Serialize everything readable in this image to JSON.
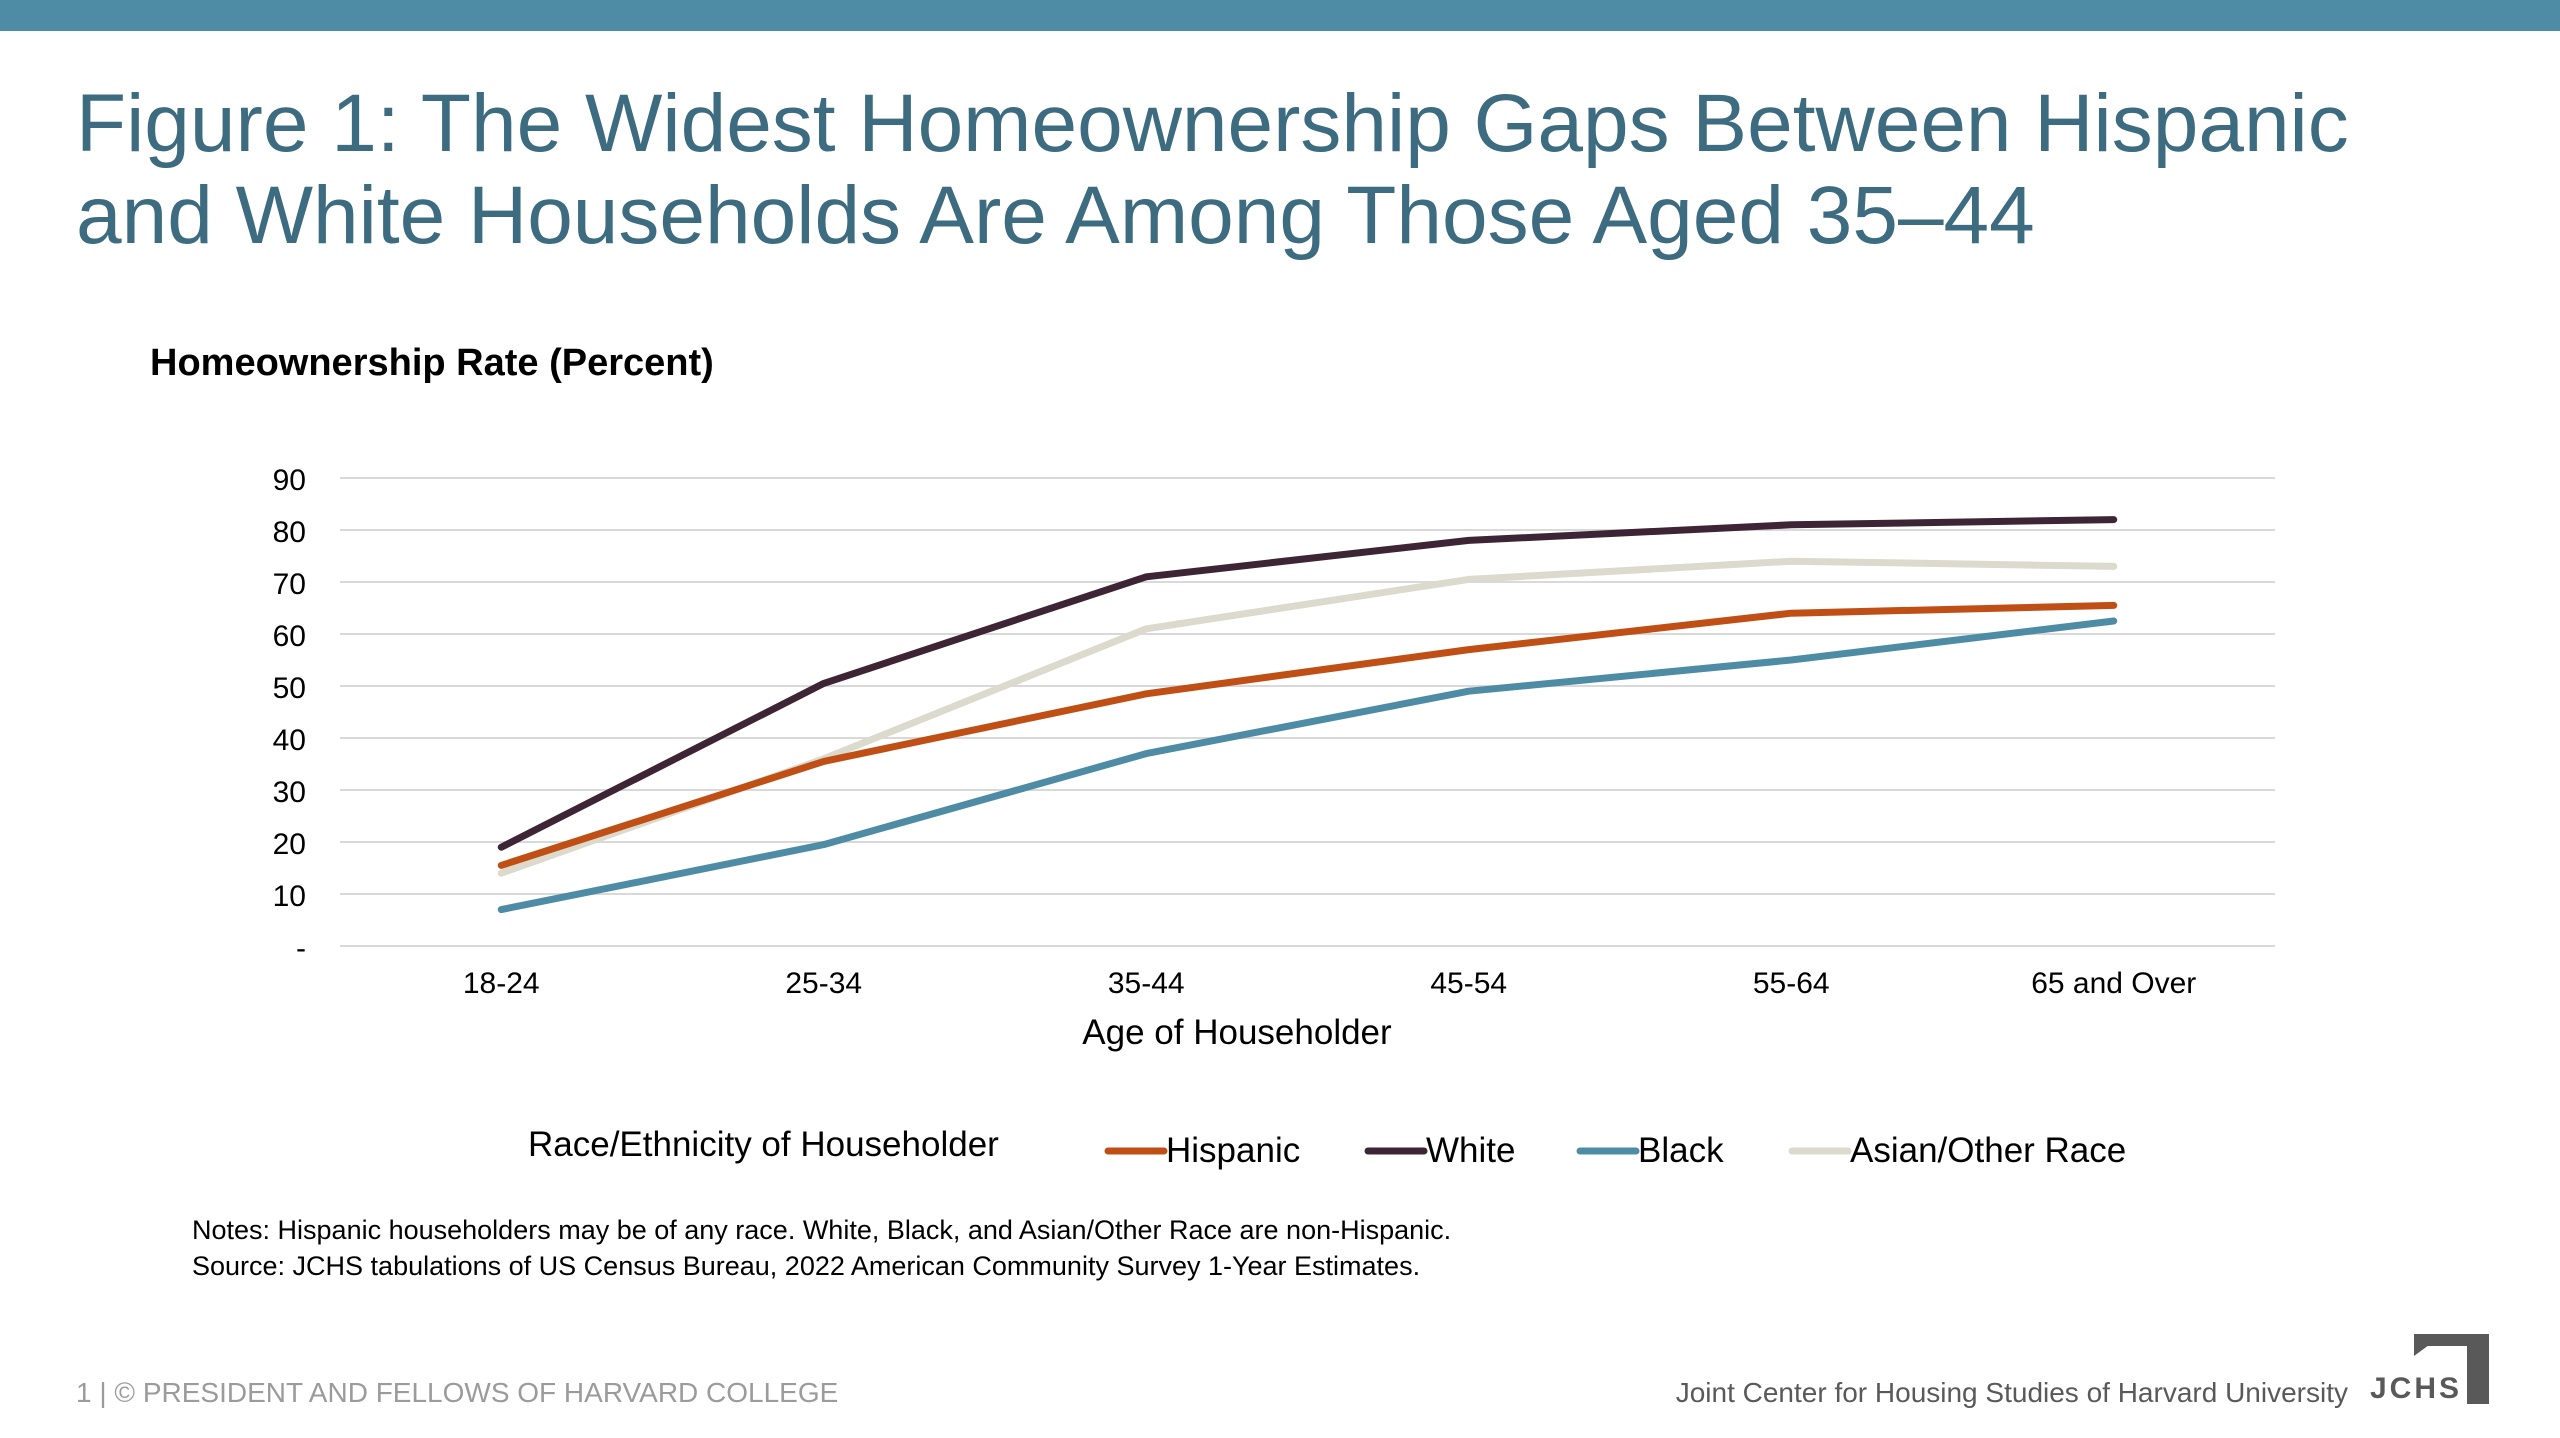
{
  "slide": {
    "title_line1": "Figure 1: The Widest Homeownership Gaps Between Hispanic",
    "title_line2": "and White Households Are Among Those Aged 35–44",
    "notes_line1": "Notes: Hispanic householders may be of any race. White, Black, and Asian/Other Race are non-Hispanic.",
    "notes_line2": "Source: JCHS tabulations of US Census Bureau, 2022 American Community Survey 1-Year Estimates.",
    "footer_left": "1 | © PRESIDENT AND FELLOWS OF HARVARD COLLEGE",
    "footer_right": "Joint Center for Housing Studies of Harvard University",
    "logo_text": "JCHS",
    "colors": {
      "accent_bar": "#4e8ca5",
      "title": "#3d6b80"
    }
  },
  "chart_data": {
    "type": "line",
    "ylabel": "Homeownership Rate (Percent)",
    "xlabel": "Age of Householder",
    "legend_title": "Race/Ethnicity of Householder",
    "legend_position": "bottom",
    "grid": true,
    "ylim": [
      0,
      90
    ],
    "yticks": [
      {
        "value": 0,
        "label": "-"
      },
      {
        "value": 10,
        "label": "10"
      },
      {
        "value": 20,
        "label": "20"
      },
      {
        "value": 30,
        "label": "30"
      },
      {
        "value": 40,
        "label": "40"
      },
      {
        "value": 50,
        "label": "50"
      },
      {
        "value": 60,
        "label": "60"
      },
      {
        "value": 70,
        "label": "70"
      },
      {
        "value": 80,
        "label": "80"
      },
      {
        "value": 90,
        "label": "90"
      }
    ],
    "categories": [
      "18-24",
      "25-34",
      "35-44",
      "45-54",
      "55-64",
      "65 and Over"
    ],
    "series": [
      {
        "name": "Hispanic",
        "color": "#c04f15",
        "values": [
          15.5,
          35.5,
          48.5,
          57.0,
          64.0,
          65.5
        ]
      },
      {
        "name": "White",
        "color": "#3e2535",
        "values": [
          19.0,
          50.5,
          71.0,
          78.0,
          81.0,
          82.0
        ]
      },
      {
        "name": "Black",
        "color": "#4e8ca5",
        "values": [
          7.0,
          19.5,
          37.0,
          49.0,
          55.0,
          62.5
        ]
      },
      {
        "name": "Asian/Other Race",
        "color": "#dcdacc",
        "values": [
          14.0,
          36.0,
          61.0,
          70.5,
          74.0,
          73.0
        ]
      }
    ]
  }
}
